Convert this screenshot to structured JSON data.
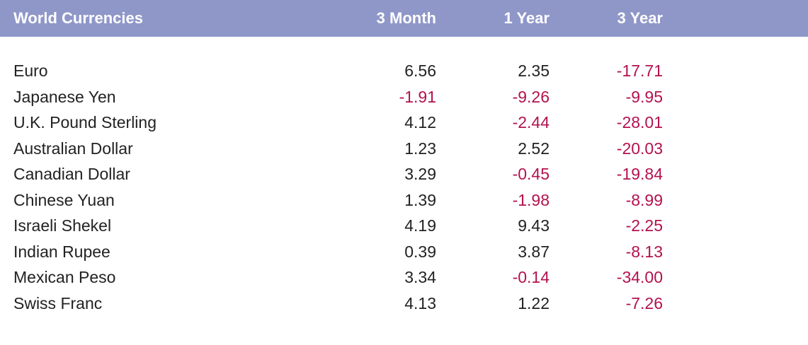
{
  "colors": {
    "header_bg": "#8f97c9",
    "header_text": "#ffffff",
    "positive_text": "#222222",
    "negative_text": "#b3124e"
  },
  "chart_data": {
    "type": "table",
    "columns": [
      "World Currencies",
      "3 Month",
      "1 Year",
      "3 Year"
    ],
    "rows": [
      {
        "name": "Euro",
        "values": [
          "6.56",
          "2.35",
          "-17.71"
        ]
      },
      {
        "name": "Japanese Yen",
        "values": [
          "-1.91",
          "-9.26",
          "-9.95"
        ]
      },
      {
        "name": "U.K. Pound Sterling",
        "values": [
          "4.12",
          "-2.44",
          "-28.01"
        ]
      },
      {
        "name": "Australian Dollar",
        "values": [
          "1.23",
          "2.52",
          "-20.03"
        ]
      },
      {
        "name": "Canadian Dollar",
        "values": [
          "3.29",
          "-0.45",
          "-19.84"
        ]
      },
      {
        "name": "Chinese Yuan",
        "values": [
          "1.39",
          "-1.98",
          "-8.99"
        ]
      },
      {
        "name": "Israeli Shekel",
        "values": [
          "4.19",
          "9.43",
          "-2.25"
        ]
      },
      {
        "name": "Indian Rupee",
        "values": [
          "0.39",
          "3.87",
          "-8.13"
        ]
      },
      {
        "name": "Mexican Peso",
        "values": [
          "3.34",
          "-0.14",
          "-34.00"
        ]
      },
      {
        "name": "Swiss Franc",
        "values": [
          "4.13",
          "1.22",
          "-7.26"
        ]
      }
    ]
  }
}
